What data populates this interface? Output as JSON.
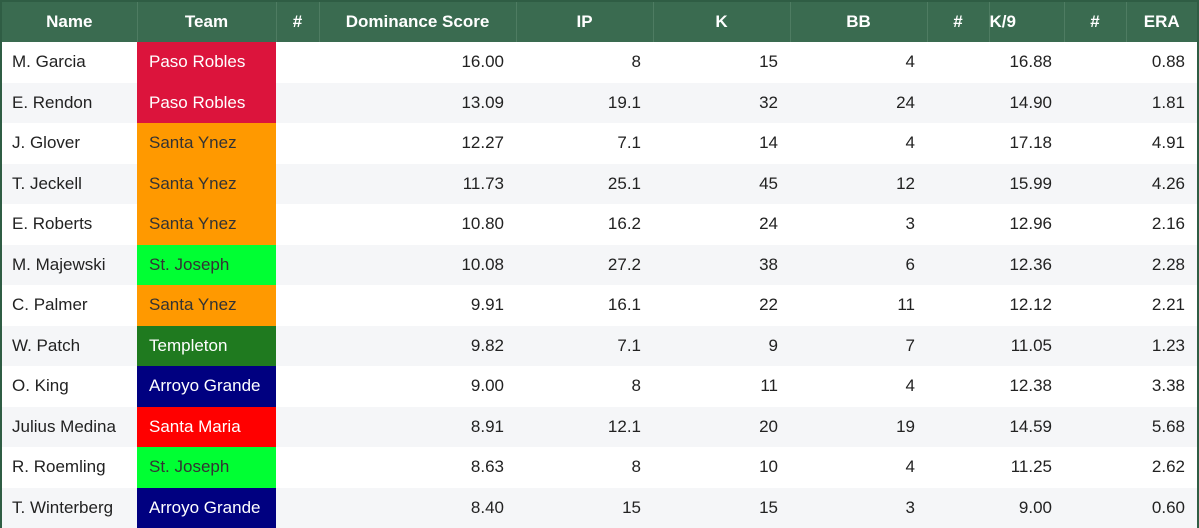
{
  "headers": {
    "name": "Name",
    "team": "Team",
    "hash1": "#",
    "dominance": "Dominance Score",
    "ip": "IP",
    "k": "K",
    "bb": "BB",
    "hash2": "#",
    "k9": "K/9",
    "hash3": "#",
    "era": "ERA"
  },
  "team_colors": {
    "Paso Robles": {
      "bg": "#dc143c",
      "fg": "#ffffff"
    },
    "Santa Ynez": {
      "bg": "#ff9900",
      "fg": "#333333"
    },
    "St. Joseph": {
      "bg": "#00ff33",
      "fg": "#333333"
    },
    "Templeton": {
      "bg": "#1f7a1f",
      "fg": "#ffffff"
    },
    "Arroyo Grande": {
      "bg": "#000080",
      "fg": "#ffffff"
    },
    "Santa Maria": {
      "bg": "#ff0000",
      "fg": "#ffffff"
    }
  },
  "rows": [
    {
      "name": "M. Garcia",
      "team": "Paso Robles",
      "dominance": "16.00",
      "ip": "8",
      "k": "15",
      "bb": "4",
      "k9": "16.88",
      "era": "0.88"
    },
    {
      "name": "E. Rendon",
      "team": "Paso Robles",
      "dominance": "13.09",
      "ip": "19.1",
      "k": "32",
      "bb": "24",
      "k9": "14.90",
      "era": "1.81"
    },
    {
      "name": "J. Glover",
      "team": "Santa Ynez",
      "dominance": "12.27",
      "ip": "7.1",
      "k": "14",
      "bb": "4",
      "k9": "17.18",
      "era": "4.91"
    },
    {
      "name": "T. Jeckell",
      "team": "Santa Ynez",
      "dominance": "11.73",
      "ip": "25.1",
      "k": "45",
      "bb": "12",
      "k9": "15.99",
      "era": "4.26"
    },
    {
      "name": "E. Roberts",
      "team": "Santa Ynez",
      "dominance": "10.80",
      "ip": "16.2",
      "k": "24",
      "bb": "3",
      "k9": "12.96",
      "era": "2.16"
    },
    {
      "name": "M. Majewski",
      "team": "St. Joseph",
      "dominance": "10.08",
      "ip": "27.2",
      "k": "38",
      "bb": "6",
      "k9": "12.36",
      "era": "2.28"
    },
    {
      "name": "C. Palmer",
      "team": "Santa Ynez",
      "dominance": "9.91",
      "ip": "16.1",
      "k": "22",
      "bb": "11",
      "k9": "12.12",
      "era": "2.21"
    },
    {
      "name": "W. Patch",
      "team": "Templeton",
      "dominance": "9.82",
      "ip": "7.1",
      "k": "9",
      "bb": "7",
      "k9": "11.05",
      "era": "1.23"
    },
    {
      "name": "O. King",
      "team": "Arroyo Grande",
      "dominance": "9.00",
      "ip": "8",
      "k": "11",
      "bb": "4",
      "k9": "12.38",
      "era": "3.38"
    },
    {
      "name": "Julius Medina",
      "team": "Santa Maria",
      "dominance": "8.91",
      "ip": "12.1",
      "k": "20",
      "bb": "19",
      "k9": "14.59",
      "era": "5.68"
    },
    {
      "name": "R. Roemling",
      "team": "St. Joseph",
      "dominance": "8.63",
      "ip": "8",
      "k": "10",
      "bb": "4",
      "k9": "11.25",
      "era": "2.62"
    },
    {
      "name": "T. Winterberg",
      "team": "Arroyo Grande",
      "dominance": "8.40",
      "ip": "15",
      "k": "15",
      "bb": "3",
      "k9": "9.00",
      "era": "0.60"
    }
  ]
}
